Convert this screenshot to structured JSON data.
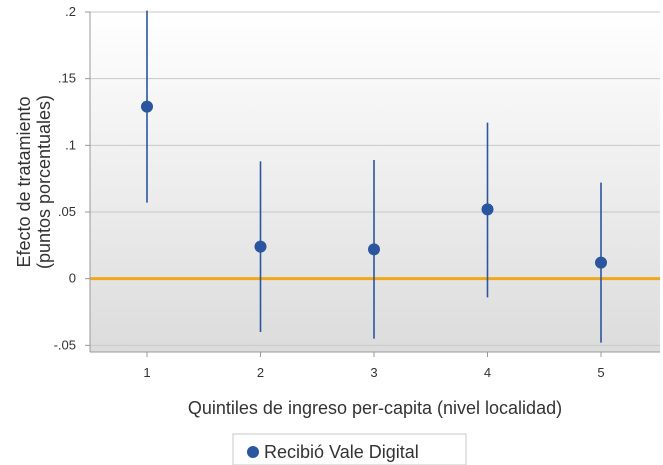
{
  "chart_data": {
    "type": "scatter",
    "subtype": "point-estimate-with-confidence-intervals",
    "x_categories": [
      "1",
      "2",
      "3",
      "4",
      "5"
    ],
    "series": [
      {
        "name": "Recibió Vale Digital",
        "estimates": [
          0.129,
          0.024,
          0.022,
          0.052,
          0.012
        ],
        "ci_lower": [
          0.057,
          -0.04,
          -0.045,
          -0.014,
          -0.048
        ],
        "ci_upper": [
          0.201,
          0.088,
          0.089,
          0.117,
          0.072
        ]
      }
    ],
    "xlabel": "Quintiles de ingreso per-capita (nivel localidad)",
    "ylabel_line1": "Efecto de tratamiento",
    "ylabel_line2": "(puntos porcentuales)",
    "y_ticks": [
      ".2",
      ".15",
      ".1",
      ".05",
      "0",
      "-.05"
    ],
    "y_tick_values": [
      0.2,
      0.15,
      0.1,
      0.05,
      0,
      -0.05
    ],
    "ylim": [
      -0.055,
      0.2
    ],
    "reference_line_y": 0,
    "grid": true,
    "legend_position": "bottom-center",
    "colors": {
      "point": "#2a56a0",
      "ci_line": "#2a56a0",
      "reference_line": "#f0a818",
      "grid": "#c8c8c8",
      "background_top": "#ffffff",
      "background_bottom": "#dcdcdc",
      "axis": "#999999",
      "text": "#333333"
    }
  }
}
